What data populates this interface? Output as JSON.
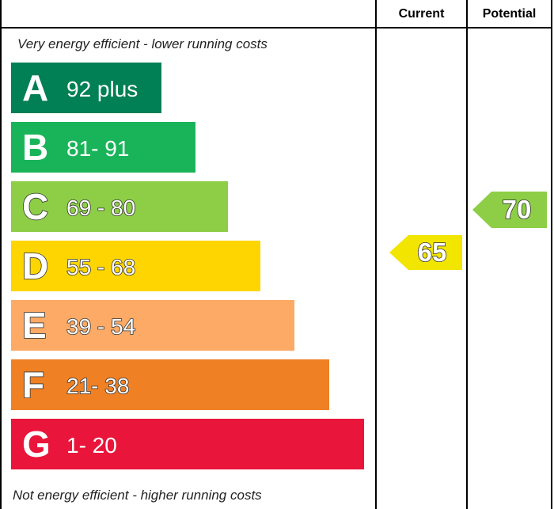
{
  "headers": {
    "current": "Current",
    "potential": "Potential"
  },
  "captions": {
    "top": "Very energy efficient - lower running costs",
    "bottom": "Not energy efficient - higher running costs"
  },
  "chart_data": {
    "type": "bar",
    "categories": [
      "A",
      "B",
      "C",
      "D",
      "E",
      "F",
      "G"
    ],
    "bands": [
      {
        "letter": "A",
        "range": "92 plus",
        "min": 92,
        "max": 100,
        "color": "#008054"
      },
      {
        "letter": "B",
        "range": "81- 91",
        "min": 81,
        "max": 91,
        "color": "#19b459"
      },
      {
        "letter": "C",
        "range": "69 - 80",
        "min": 69,
        "max": 80,
        "color": "#8dce46"
      },
      {
        "letter": "D",
        "range": "55 - 68",
        "min": 55,
        "max": 68,
        "color": "#ffd500"
      },
      {
        "letter": "E",
        "range": "39 - 54",
        "min": 39,
        "max": 54,
        "color": "#fcaa65"
      },
      {
        "letter": "F",
        "range": "21- 38",
        "min": 21,
        "max": 38,
        "color": "#ef8023"
      },
      {
        "letter": "G",
        "range": "1- 20",
        "min": 1,
        "max": 20,
        "color": "#e9153b"
      }
    ],
    "current": {
      "value": 65,
      "label": "65",
      "band": "D",
      "color": "#f2e500"
    },
    "potential": {
      "value": 70,
      "label": "70",
      "band": "C",
      "color": "#8dce46"
    }
  }
}
